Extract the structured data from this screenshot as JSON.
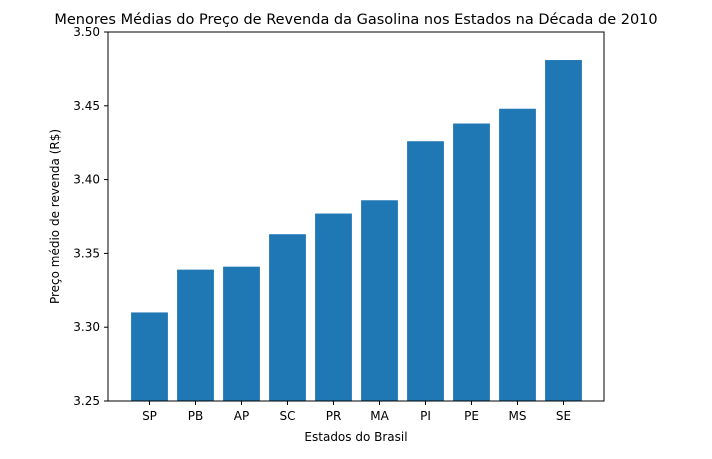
{
  "chart_data": {
    "type": "bar",
    "title": "Menores Médias do Preço de Revenda da Gasolina nos Estados na Década de 2010",
    "xlabel": "Estados do Brasil",
    "ylabel": "Preço médio de revenda (R$)",
    "categories": [
      "SP",
      "PB",
      "AP",
      "SC",
      "PR",
      "MA",
      "PI",
      "PE",
      "MS",
      "SE"
    ],
    "values": [
      3.31,
      3.339,
      3.341,
      3.363,
      3.377,
      3.386,
      3.426,
      3.438,
      3.448,
      3.481
    ],
    "ylim": [
      3.25,
      3.5
    ],
    "yticks": [
      "3.25",
      "3.30",
      "3.35",
      "3.40",
      "3.45",
      "3.50"
    ],
    "bar_color": "#1f77b4",
    "grid": false,
    "legend": "none"
  }
}
